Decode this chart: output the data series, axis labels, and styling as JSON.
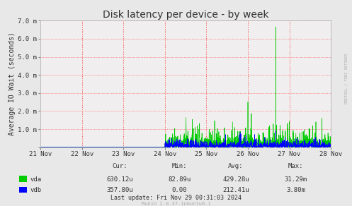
{
  "title": "Disk latency per device - by week",
  "ylabel": "Average IO Wait (seconds)",
  "background_color": "#e8e8e8",
  "plot_bg_color": "#f0eeee",
  "font_color": "#333333",
  "vda_color": "#00cc00",
  "vdb_color": "#0000ff",
  "ytick_labels": [
    "",
    "1.0 m",
    "2.0 m",
    "3.0 m",
    "4.0 m",
    "5.0 m",
    "6.0 m",
    "7.0 m"
  ],
  "yticks": [
    0,
    0.001,
    0.002,
    0.003,
    0.004,
    0.005,
    0.006,
    0.007
  ],
  "y_max": 0.007,
  "xtick_labels": [
    "21 Nov",
    "22 Nov",
    "23 Nov",
    "24 Nov",
    "25 Nov",
    "26 Nov",
    "27 Nov",
    "28 Nov"
  ],
  "table_headers": [
    "Cur:",
    "Min:",
    "Avg:",
    "Max:"
  ],
  "table_vda": [
    "630.12u",
    "82.89u",
    "429.28u",
    "31.29m"
  ],
  "table_vdb": [
    "357.80u",
    "0.00",
    "212.41u",
    "3.80m"
  ],
  "last_update": "Last update: Fri Nov 29 00:31:03 2024",
  "munin_version": "Munin 2.0.37-1ubuntu0.1",
  "watermark": "RRDTOOL / TOBI OETIKER",
  "title_fontsize": 10,
  "axis_fontsize": 7,
  "tick_fontsize": 6.5
}
